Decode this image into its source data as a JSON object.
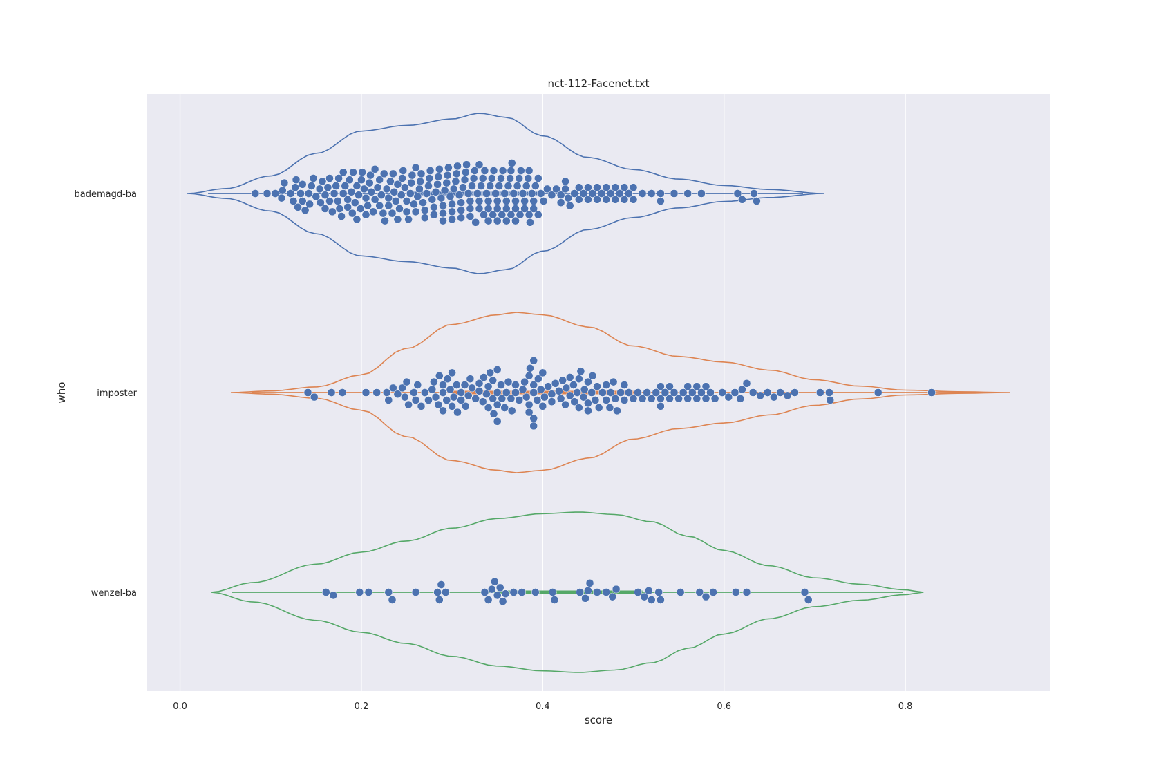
{
  "chart_data": {
    "type": "violin+swarm",
    "title": "nct-112-Facenet.txt",
    "xlabel": "score",
    "ylabel": "who",
    "xlim": [
      -0.037,
      0.96
    ],
    "xticks": [
      0.0,
      0.2,
      0.4,
      0.6,
      0.8
    ],
    "xtick_labels": [
      "0.0",
      "0.2",
      "0.4",
      "0.6",
      "0.8"
    ],
    "grid": true,
    "categories": [
      "bademagd-ba",
      "imposter",
      "wenzel-ba"
    ],
    "colors": {
      "plot_bg": "#eaeaf2",
      "grid": "#ffffff",
      "bademagd-ba": "#4c72b0",
      "imposter": "#dd8452",
      "wenzel-ba": "#55a868",
      "points": "#4c72b0"
    },
    "series": [
      {
        "name": "bademagd-ba",
        "violin_range": [
          0.008,
          0.71
        ],
        "iqr": [
          0.25,
          0.4
        ],
        "density": [
          [
            0.008,
            0.0
          ],
          [
            0.05,
            0.06
          ],
          [
            0.1,
            0.22
          ],
          [
            0.15,
            0.5
          ],
          [
            0.2,
            0.78
          ],
          [
            0.25,
            0.85
          ],
          [
            0.3,
            0.93
          ],
          [
            0.33,
            1.0
          ],
          [
            0.36,
            0.95
          ],
          [
            0.4,
            0.72
          ],
          [
            0.45,
            0.45
          ],
          [
            0.5,
            0.3
          ],
          [
            0.55,
            0.18
          ],
          [
            0.6,
            0.1
          ],
          [
            0.65,
            0.05
          ],
          [
            0.71,
            0.0
          ]
        ],
        "values": [
          0.083,
          0.096,
          0.112,
          0.113,
          0.122,
          0.127,
          0.128,
          0.13,
          0.133,
          0.135,
          0.138,
          0.142,
          0.143,
          0.147,
          0.15,
          0.154,
          0.157,
          0.16,
          0.163,
          0.165,
          0.168,
          0.17,
          0.172,
          0.174,
          0.176,
          0.178,
          0.18,
          0.182,
          0.185,
          0.187,
          0.189,
          0.191,
          0.193,
          0.195,
          0.197,
          0.199,
          0.201,
          0.203,
          0.205,
          0.207,
          0.209,
          0.211,
          0.213,
          0.215,
          0.218,
          0.22,
          0.222,
          0.224,
          0.226,
          0.228,
          0.23,
          0.232,
          0.234,
          0.236,
          0.238,
          0.24,
          0.242,
          0.244,
          0.246,
          0.248,
          0.25,
          0.252,
          0.254,
          0.256,
          0.258,
          0.26,
          0.262,
          0.264,
          0.266,
          0.268,
          0.27,
          0.272,
          0.274,
          0.276,
          0.278,
          0.28,
          0.282,
          0.284,
          0.286,
          0.288,
          0.29,
          0.292,
          0.294,
          0.296,
          0.298,
          0.3,
          0.302,
          0.304,
          0.306,
          0.308,
          0.31,
          0.312,
          0.314,
          0.316,
          0.318,
          0.32,
          0.322,
          0.324,
          0.326,
          0.328,
          0.33,
          0.332,
          0.334,
          0.336,
          0.338,
          0.34,
          0.342,
          0.344,
          0.346,
          0.348,
          0.35,
          0.352,
          0.354,
          0.356,
          0.358,
          0.36,
          0.362,
          0.364,
          0.366,
          0.368,
          0.37,
          0.372,
          0.374,
          0.376,
          0.378,
          0.38,
          0.382,
          0.384,
          0.386,
          0.388,
          0.39,
          0.392,
          0.395,
          0.398,
          0.401,
          0.405,
          0.41,
          0.415,
          0.42,
          0.425,
          0.43,
          0.435,
          0.44,
          0.445,
          0.45,
          0.455,
          0.46,
          0.465,
          0.47,
          0.475,
          0.48,
          0.485,
          0.49,
          0.495,
          0.5,
          0.51,
          0.52,
          0.53,
          0.545,
          0.56,
          0.575,
          0.615,
          0.62,
          0.633,
          0.636,
          0.105,
          0.115,
          0.125,
          0.135,
          0.145,
          0.155,
          0.165,
          0.175,
          0.185,
          0.195,
          0.205,
          0.215,
          0.225,
          0.235,
          0.245,
          0.255,
          0.265,
          0.275,
          0.285,
          0.295,
          0.305,
          0.315,
          0.325,
          0.335,
          0.345,
          0.355,
          0.365,
          0.375,
          0.385,
          0.395,
          0.18,
          0.19,
          0.2,
          0.21,
          0.24,
          0.25,
          0.28,
          0.29,
          0.3,
          0.31,
          0.32,
          0.33,
          0.34,
          0.35,
          0.36,
          0.37,
          0.38,
          0.385,
          0.39,
          0.42,
          0.425,
          0.428,
          0.44,
          0.45,
          0.46,
          0.47,
          0.48,
          0.49,
          0.5,
          0.53,
          0.31,
          0.32,
          0.33,
          0.34,
          0.35,
          0.36,
          0.365,
          0.37,
          0.3,
          0.29,
          0.27,
          0.26,
          0.23,
          0.22,
          0.16
        ]
      },
      {
        "name": "imposter",
        "violin_range": [
          0.056,
          0.915
        ],
        "iqr": [
          0.3,
          0.5
        ],
        "density": [
          [
            0.056,
            0.0
          ],
          [
            0.1,
            0.02
          ],
          [
            0.15,
            0.07
          ],
          [
            0.2,
            0.22
          ],
          [
            0.25,
            0.55
          ],
          [
            0.3,
            0.85
          ],
          [
            0.35,
            0.97
          ],
          [
            0.37,
            1.0
          ],
          [
            0.4,
            0.97
          ],
          [
            0.45,
            0.82
          ],
          [
            0.5,
            0.58
          ],
          [
            0.55,
            0.45
          ],
          [
            0.6,
            0.38
          ],
          [
            0.65,
            0.28
          ],
          [
            0.7,
            0.16
          ],
          [
            0.75,
            0.08
          ],
          [
            0.8,
            0.03
          ],
          [
            0.86,
            0.01
          ],
          [
            0.915,
            0.0
          ]
        ],
        "values": [
          0.141,
          0.148,
          0.167,
          0.179,
          0.205,
          0.217,
          0.228,
          0.23,
          0.235,
          0.24,
          0.245,
          0.248,
          0.252,
          0.258,
          0.262,
          0.266,
          0.27,
          0.274,
          0.278,
          0.282,
          0.286,
          0.29,
          0.294,
          0.298,
          0.302,
          0.306,
          0.31,
          0.314,
          0.318,
          0.322,
          0.326,
          0.33,
          0.334,
          0.338,
          0.342,
          0.346,
          0.35,
          0.354,
          0.358,
          0.362,
          0.366,
          0.37,
          0.374,
          0.378,
          0.382,
          0.386,
          0.39,
          0.394,
          0.398,
          0.402,
          0.406,
          0.41,
          0.414,
          0.418,
          0.422,
          0.426,
          0.43,
          0.434,
          0.438,
          0.442,
          0.446,
          0.45,
          0.454,
          0.458,
          0.462,
          0.466,
          0.47,
          0.474,
          0.478,
          0.482,
          0.486,
          0.49,
          0.495,
          0.5,
          0.505,
          0.51,
          0.515,
          0.52,
          0.525,
          0.53,
          0.535,
          0.54,
          0.545,
          0.55,
          0.555,
          0.56,
          0.565,
          0.57,
          0.575,
          0.58,
          0.585,
          0.59,
          0.598,
          0.605,
          0.612,
          0.618,
          0.625,
          0.632,
          0.64,
          0.648,
          0.655,
          0.662,
          0.67,
          0.678,
          0.706,
          0.716,
          0.717,
          0.77,
          0.829,
          0.25,
          0.26,
          0.28,
          0.29,
          0.3,
          0.31,
          0.32,
          0.33,
          0.34,
          0.35,
          0.36,
          0.37,
          0.38,
          0.39,
          0.4,
          0.41,
          0.42,
          0.43,
          0.44,
          0.45,
          0.46,
          0.47,
          0.48,
          0.49,
          0.53,
          0.54,
          0.56,
          0.57,
          0.58,
          0.62,
          0.285,
          0.295,
          0.305,
          0.315,
          0.335,
          0.345,
          0.355,
          0.365,
          0.385,
          0.395,
          0.425,
          0.435,
          0.445,
          0.455,
          0.475,
          0.29,
          0.3,
          0.34,
          0.35,
          0.39,
          0.4,
          0.44,
          0.45,
          0.39,
          0.385,
          0.35,
          0.345,
          0.39,
          0.53,
          0.385
        ]
      },
      {
        "name": "wenzel-ba",
        "violin_range": [
          0.034,
          0.82
        ],
        "iqr": [
          0.35,
          0.51
        ],
        "density": [
          [
            0.034,
            0.0
          ],
          [
            0.08,
            0.12
          ],
          [
            0.15,
            0.35
          ],
          [
            0.2,
            0.5
          ],
          [
            0.25,
            0.64
          ],
          [
            0.3,
            0.8
          ],
          [
            0.35,
            0.92
          ],
          [
            0.4,
            0.98
          ],
          [
            0.44,
            1.0
          ],
          [
            0.48,
            0.97
          ],
          [
            0.52,
            0.88
          ],
          [
            0.56,
            0.7
          ],
          [
            0.6,
            0.52
          ],
          [
            0.65,
            0.33
          ],
          [
            0.7,
            0.18
          ],
          [
            0.75,
            0.1
          ],
          [
            0.8,
            0.03
          ],
          [
            0.82,
            0.0
          ]
        ],
        "values": [
          0.161,
          0.169,
          0.198,
          0.208,
          0.23,
          0.234,
          0.26,
          0.284,
          0.286,
          0.288,
          0.293,
          0.336,
          0.34,
          0.344,
          0.347,
          0.35,
          0.353,
          0.356,
          0.359,
          0.368,
          0.377,
          0.392,
          0.411,
          0.413,
          0.441,
          0.447,
          0.45,
          0.452,
          0.46,
          0.47,
          0.477,
          0.481,
          0.505,
          0.512,
          0.517,
          0.52,
          0.528,
          0.53,
          0.552,
          0.573,
          0.58,
          0.588,
          0.613,
          0.625,
          0.689,
          0.693
        ]
      }
    ]
  }
}
